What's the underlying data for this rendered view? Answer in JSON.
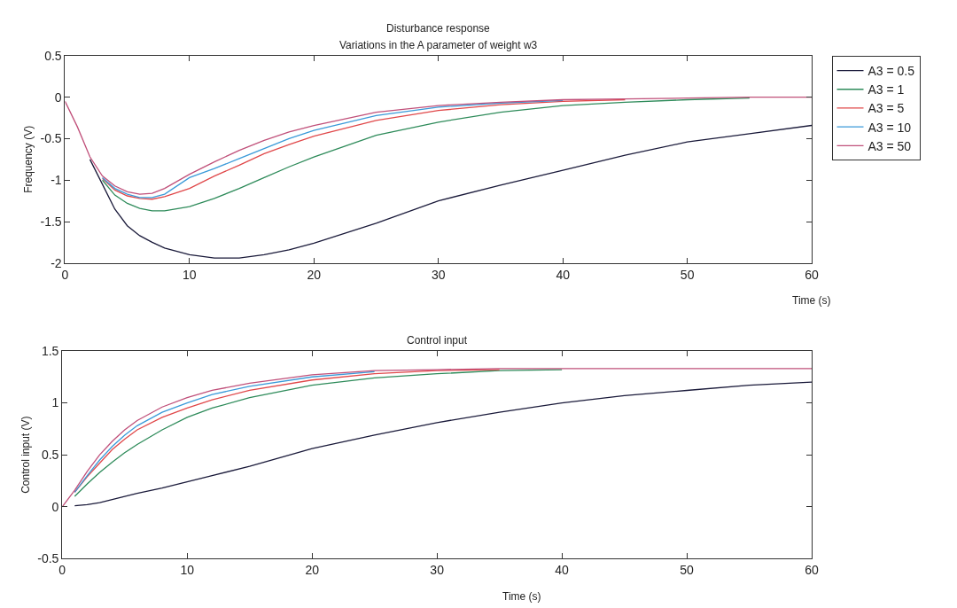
{
  "chart_data": [
    {
      "type": "line",
      "title": "Disturbance response",
      "subtitle": "Variations in the A parameter of weight w3",
      "xlabel": "Time (s)",
      "ylabel": "Frequency (V)",
      "xlim": [
        0,
        60
      ],
      "xticks": [
        0,
        10,
        20,
        30,
        40,
        50,
        60
      ],
      "ylim": [
        -2,
        0.5
      ],
      "yticks": [
        -2,
        -1.5,
        -1,
        -0.5,
        0,
        0.5
      ],
      "legend": "top right",
      "line_style": "solid",
      "x": [
        0,
        1,
        2,
        3,
        4,
        5,
        6,
        7,
        8,
        10,
        12,
        14,
        16,
        18,
        20,
        25,
        30,
        35,
        40,
        45,
        50,
        55,
        60
      ],
      "series": [
        {
          "name": "A3 = 0.5",
          "color": "#1a1a3a",
          "values": [
            null,
            null,
            -0.75,
            -1.05,
            -1.35,
            -1.55,
            -1.67,
            -1.75,
            -1.82,
            -1.9,
            -1.94,
            -1.94,
            -1.9,
            -1.84,
            -1.76,
            -1.52,
            -1.25,
            -1.06,
            -0.88,
            -0.7,
            -0.54,
            -0.44,
            -0.34
          ]
        },
        {
          "name": "A3 = 1",
          "color": "#2e8b5a",
          "values": [
            null,
            null,
            null,
            -1.0,
            -1.18,
            -1.28,
            -1.34,
            -1.37,
            -1.37,
            -1.32,
            -1.22,
            -1.1,
            -0.97,
            -0.84,
            -0.72,
            -0.46,
            -0.3,
            -0.18,
            -0.1,
            -0.06,
            -0.03,
            -0.01,
            null
          ]
        },
        {
          "name": "A3 = 5",
          "color": "#e0484a",
          "values": [
            null,
            null,
            null,
            -0.98,
            -1.12,
            -1.19,
            -1.22,
            -1.23,
            -1.2,
            -1.1,
            -0.95,
            -0.82,
            -0.68,
            -0.57,
            -0.47,
            -0.28,
            -0.16,
            -0.09,
            -0.05,
            -0.03,
            null,
            null,
            null
          ]
        },
        {
          "name": "A3 = 10",
          "color": "#3a9ad9",
          "values": [
            null,
            null,
            null,
            -0.97,
            -1.1,
            -1.17,
            -1.21,
            -1.21,
            -1.17,
            -0.97,
            -0.86,
            -0.74,
            -0.62,
            -0.5,
            -0.4,
            -0.22,
            -0.12,
            -0.07,
            -0.04,
            null,
            null,
            null,
            null
          ]
        },
        {
          "name": "A3 = 50",
          "color": "#c0507a",
          "values": [
            -0.05,
            -0.36,
            -0.72,
            -0.95,
            -1.07,
            -1.14,
            -1.17,
            -1.16,
            -1.1,
            -0.93,
            -0.78,
            -0.64,
            -0.52,
            -0.42,
            -0.34,
            -0.18,
            -0.1,
            -0.06,
            -0.03,
            -0.02,
            -0.01,
            0,
            0
          ]
        }
      ]
    },
    {
      "type": "line",
      "title": "Control input",
      "xlabel": "Time (s)",
      "ylabel": "Control input (V)",
      "xlim": [
        0,
        60
      ],
      "xticks": [
        0,
        10,
        20,
        30,
        40,
        50,
        60
      ],
      "ylim": [
        -0.5,
        1.5
      ],
      "yticks": [
        -0.5,
        0,
        0.5,
        1,
        1.5
      ],
      "line_style": "solid",
      "x": [
        0,
        1,
        2,
        3,
        4,
        5,
        6,
        8,
        10,
        12,
        15,
        20,
        25,
        30,
        35,
        40,
        45,
        50,
        55,
        60
      ],
      "series": [
        {
          "color": "#1a1a3a",
          "values": [
            null,
            0.01,
            0.02,
            0.04,
            0.07,
            0.1,
            0.13,
            0.18,
            0.24,
            0.3,
            0.39,
            0.56,
            0.69,
            0.81,
            0.91,
            1.0,
            1.07,
            1.12,
            1.17,
            1.2
          ]
        },
        {
          "color": "#2e8b5a",
          "values": [
            null,
            0.1,
            0.22,
            0.33,
            0.43,
            0.52,
            0.6,
            0.74,
            0.86,
            0.95,
            1.05,
            1.17,
            1.24,
            1.28,
            1.31,
            1.32,
            null,
            null,
            null,
            null
          ]
        },
        {
          "color": "#e0484a",
          "values": [
            null,
            0.14,
            0.29,
            0.42,
            0.55,
            0.65,
            0.74,
            0.86,
            0.95,
            1.03,
            1.12,
            1.22,
            1.28,
            1.31,
            1.32,
            null,
            null,
            null,
            null,
            null
          ]
        },
        {
          "color": "#3a9ad9",
          "values": [
            null,
            0.14,
            0.3,
            0.45,
            0.58,
            0.69,
            0.78,
            0.91,
            1.0,
            1.08,
            1.16,
            1.25,
            1.3,
            null,
            null,
            null,
            null,
            null,
            null,
            null
          ]
        },
        {
          "color": "#c0507a",
          "values": [
            0,
            0.16,
            0.34,
            0.5,
            0.63,
            0.74,
            0.83,
            0.96,
            1.05,
            1.12,
            1.19,
            1.27,
            1.31,
            1.32,
            1.33,
            1.33,
            1.33,
            1.33,
            1.33,
            1.33
          ]
        }
      ]
    }
  ]
}
